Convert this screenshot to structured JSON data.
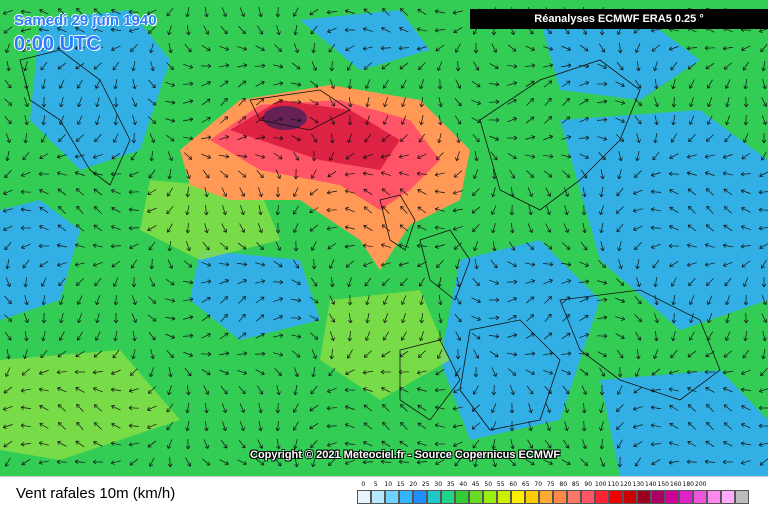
{
  "header": {
    "date": "Samedi 29 juin 1940",
    "time": "0:00 UTC",
    "source": "Réanalyses ECMWF ERA5 0.25 °"
  },
  "footer": {
    "copyright": "Copyright © 2021 Meteociel.fr - Source Copernicus ECMWF",
    "legend_title": "Vent rafales 10m (km/h)"
  },
  "scale": {
    "labels": [
      "0",
      "5",
      "10",
      "15",
      "20",
      "25",
      "30",
      "35",
      "40",
      "45",
      "50",
      "55",
      "60",
      "65",
      "70",
      "75",
      "80",
      "85",
      "90",
      "100",
      "110",
      "120",
      "130",
      "140",
      "150",
      "160",
      "180",
      "200"
    ],
    "colors": [
      "#e8f4ff",
      "#b8e8ff",
      "#6cd2ff",
      "#33b5ff",
      "#1e90ff",
      "#1ec8c8",
      "#21d48a",
      "#33cc33",
      "#66dd22",
      "#99ee11",
      "#ccee00",
      "#ffee00",
      "#ffcc00",
      "#ffaa33",
      "#ff8844",
      "#ff7766",
      "#ff5566",
      "#ff2233",
      "#ee0000",
      "#cc0000",
      "#990022",
      "#aa0066",
      "#cc0099",
      "#dd22cc",
      "#ee55dd",
      "#ff88ee",
      "#ffaaff",
      "#bbbbbb"
    ]
  },
  "map_colors": {
    "base_green": "#33cc55",
    "calm_blue": "#33aaff",
    "light_green": "#88e044",
    "storm_orange": "#ff9955",
    "storm_red": "#ff5566",
    "storm_darkred": "#dd2244",
    "storm_core": "#662255",
    "coast": "#111111"
  }
}
